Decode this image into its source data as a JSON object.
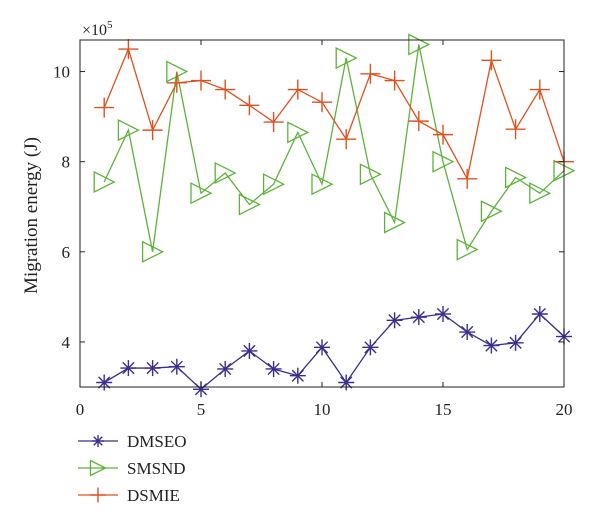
{
  "chart_data": {
    "type": "line",
    "xlabel": "",
    "ylabel": "Migration energy (J)",
    "y_multiplier_label": "×10",
    "y_multiplier_exponent": "5",
    "xlim": [
      0,
      20
    ],
    "ylim": [
      3.0,
      10.7
    ],
    "xticks": [
      0,
      5,
      10,
      15,
      20
    ],
    "xtick_labels": [
      "0",
      "5",
      "10",
      "15",
      "20"
    ],
    "yticks": [
      4,
      6,
      8,
      10
    ],
    "ytick_labels": [
      "4",
      "6",
      "8",
      "10"
    ],
    "grid": false,
    "legend_position": "bottom-left, below plot",
    "x": [
      1,
      2,
      3,
      4,
      5,
      6,
      7,
      8,
      9,
      10,
      11,
      12,
      13,
      14,
      15,
      16,
      17,
      18,
      19,
      20
    ],
    "series": [
      {
        "name": "DMSEO",
        "color": "#3a2f8f",
        "marker": "asterisk",
        "values": [
          3.1,
          3.42,
          3.42,
          3.45,
          2.95,
          3.4,
          3.8,
          3.4,
          3.25,
          3.88,
          3.1,
          3.88,
          4.48,
          4.55,
          4.62,
          4.22,
          3.92,
          3.98,
          4.62,
          4.12
        ]
      },
      {
        "name": "SMSND",
        "color": "#5db33a",
        "marker": "triangle-right",
        "values": [
          7.55,
          8.7,
          6.0,
          10.0,
          7.3,
          7.75,
          7.05,
          7.5,
          8.65,
          7.5,
          10.3,
          7.72,
          6.65,
          10.6,
          8.0,
          6.05,
          6.9,
          7.65,
          7.3,
          7.8
        ]
      },
      {
        "name": "DSMIE",
        "color": "#e0501e",
        "marker": "plus",
        "values": [
          9.2,
          10.5,
          8.7,
          9.75,
          9.8,
          9.6,
          9.25,
          8.88,
          9.6,
          9.32,
          8.5,
          9.95,
          9.8,
          8.9,
          8.6,
          7.62,
          10.25,
          8.72,
          9.6,
          8.0
        ]
      }
    ]
  }
}
